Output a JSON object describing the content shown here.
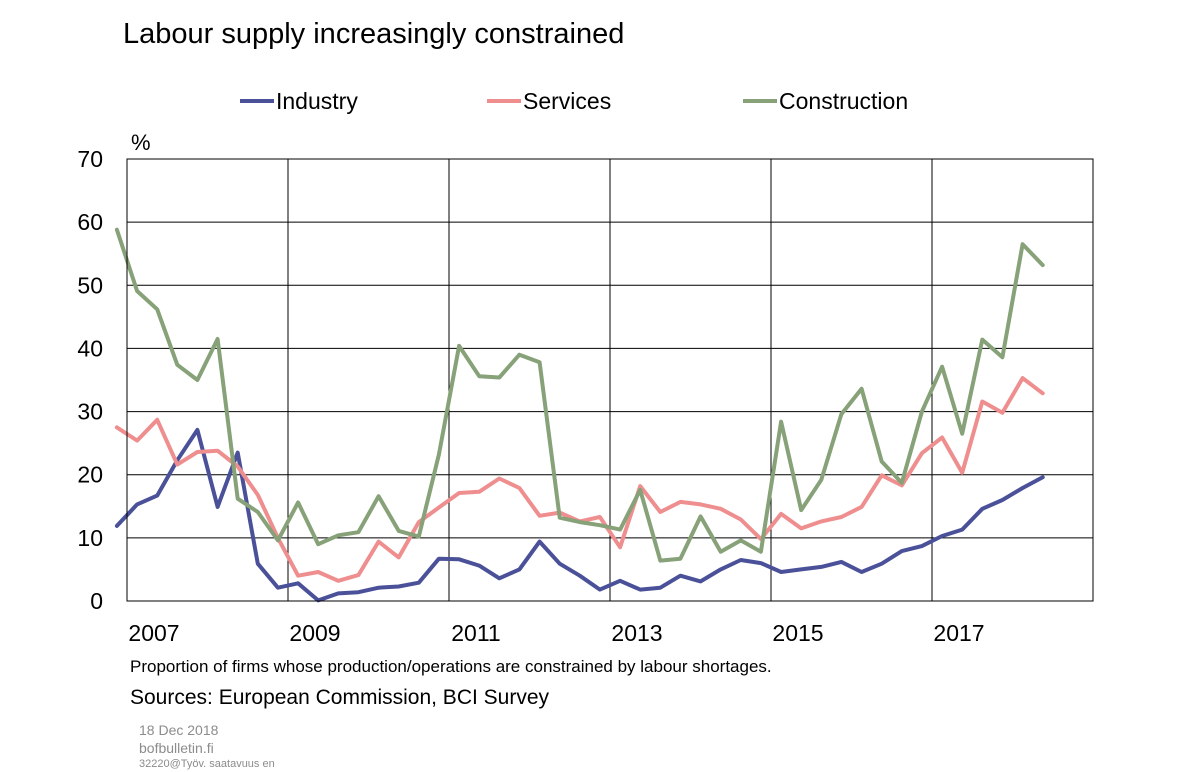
{
  "chart_data": {
    "type": "line",
    "title": "Labour supply increasingly constrained",
    "ylabel": "%",
    "ylim": [
      0,
      70
    ],
    "yticks": [
      0,
      10,
      20,
      30,
      40,
      50,
      60,
      70
    ],
    "xlim": [
      2007,
      2019
    ],
    "xticks": [
      "2007",
      "2009",
      "2011",
      "2013",
      "2015",
      "2017"
    ],
    "grid": true,
    "legend": "top",
    "x": [
      2006.875,
      2007.125,
      2007.375,
      2007.625,
      2007.875,
      2008.125,
      2008.375,
      2008.625,
      2008.875,
      2009.125,
      2009.375,
      2009.625,
      2009.875,
      2010.125,
      2010.375,
      2010.625,
      2010.875,
      2011.125,
      2011.375,
      2011.625,
      2011.875,
      2012.125,
      2012.375,
      2012.625,
      2012.875,
      2013.125,
      2013.375,
      2013.625,
      2013.875,
      2014.125,
      2014.375,
      2014.625,
      2014.875,
      2015.125,
      2015.375,
      2015.625,
      2015.875,
      2016.125,
      2016.375,
      2016.625,
      2016.875,
      2017.125,
      2017.375,
      2017.625,
      2017.875,
      2018.125,
      2018.375
    ],
    "series": [
      {
        "name": "Industry",
        "color": "#4a5199",
        "values": [
          11.9,
          15.3,
          16.7,
          22.3,
          27.1,
          14.9,
          23.5,
          5.9,
          2.1,
          2.8,
          0.1,
          1.2,
          1.4,
          2.1,
          2.3,
          2.9,
          6.7,
          6.6,
          5.6,
          3.6,
          5.0,
          9.4,
          5.9,
          4.0,
          1.8,
          3.2,
          1.8,
          2.1,
          4.0,
          3.1,
          5.0,
          6.5,
          6.0,
          4.6,
          5.0,
          5.4,
          6.2,
          4.6,
          5.9,
          7.9,
          8.7,
          10.3,
          11.3,
          14.6,
          16.0,
          17.9,
          19.6
        ]
      },
      {
        "name": "Services",
        "color": "#ef8e8e",
        "values": [
          27.5,
          25.4,
          28.7,
          21.6,
          23.6,
          23.8,
          21.3,
          16.8,
          10.0,
          4.0,
          4.6,
          3.2,
          4.1,
          9.4,
          6.9,
          12.5,
          14.8,
          17.1,
          17.3,
          19.4,
          17.9,
          13.5,
          14.0,
          12.6,
          13.3,
          8.5,
          18.2,
          14.1,
          15.7,
          15.3,
          14.6,
          12.9,
          9.8,
          13.8,
          11.5,
          12.6,
          13.3,
          14.9,
          19.9,
          18.3,
          23.4,
          25.9,
          20.3,
          31.6,
          29.8,
          35.3,
          32.9
        ]
      },
      {
        "name": "Construction",
        "color": "#87a178",
        "values": [
          58.8,
          49.1,
          46.2,
          37.4,
          35.0,
          41.5,
          16.2,
          14.1,
          9.6,
          15.6,
          9.0,
          10.4,
          10.9,
          16.6,
          11.1,
          10.2,
          23.2,
          40.4,
          35.6,
          35.4,
          39.0,
          37.8,
          13.2,
          12.5,
          12.0,
          11.3,
          17.6,
          6.4,
          6.7,
          13.4,
          7.8,
          9.6,
          7.8,
          28.4,
          14.4,
          19.2,
          29.6,
          33.6,
          22.1,
          18.7,
          30.0,
          37.1,
          26.5,
          41.4,
          38.6,
          56.5,
          53.2
        ]
      }
    ],
    "annotations": {
      "note": "Proportion of firms whose production/operations are constrained by labour shortages.",
      "source": "Sources: European Commission, BCI Survey"
    }
  },
  "footer": {
    "date": "18 Dec 2018",
    "site": "bofbulletin.fi",
    "code": "32220@Työv. saatavuus en"
  }
}
